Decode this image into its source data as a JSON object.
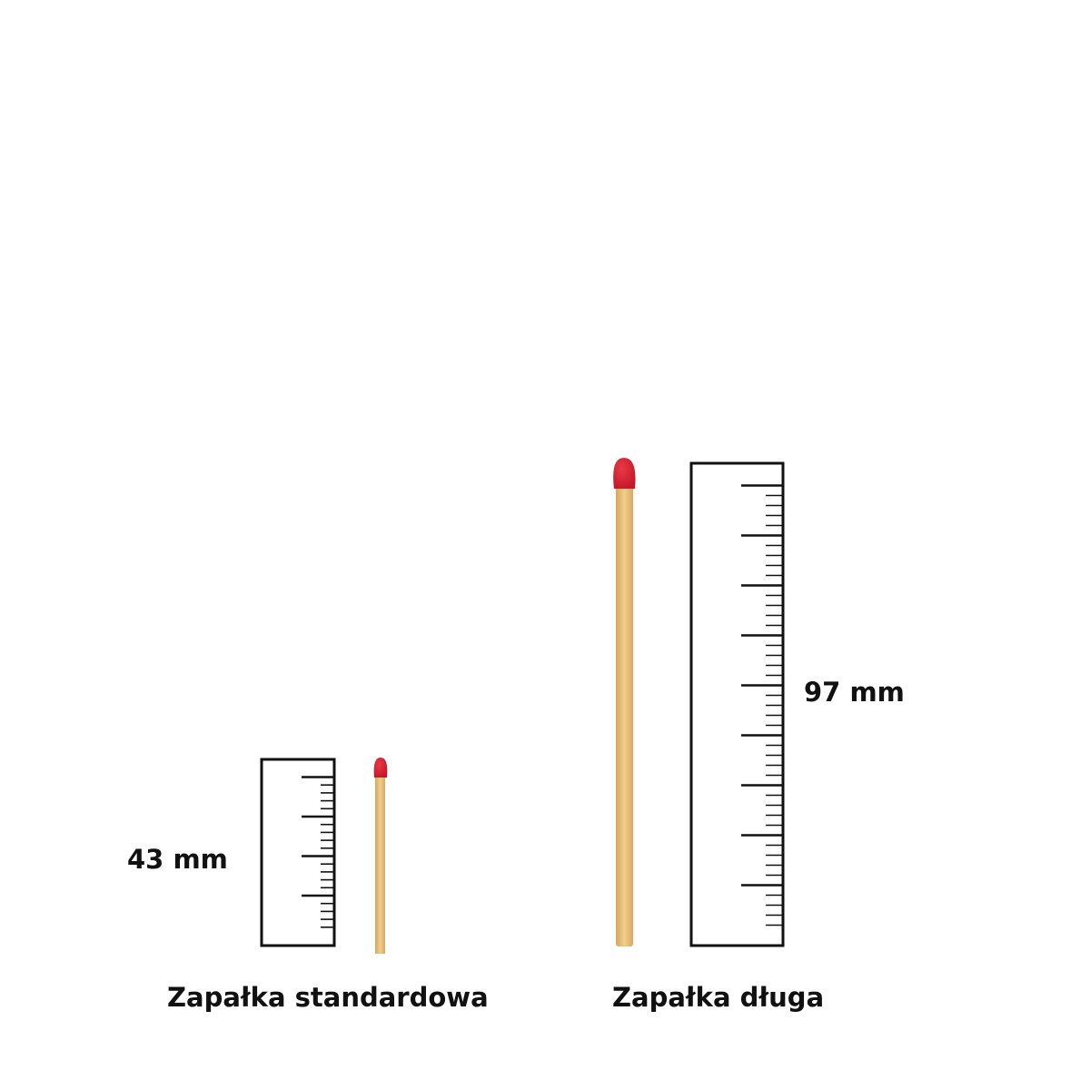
{
  "items": [
    {
      "name": "Zapałka standardowa",
      "length_label": "43 mm",
      "length_mm": 43
    },
    {
      "name": "Zapałka długa",
      "length_label": "97 mm",
      "length_mm": 97
    }
  ],
  "colors": {
    "match_head": "#d4202e",
    "match_stick": "#e8c07a",
    "ruler": "#111111"
  }
}
